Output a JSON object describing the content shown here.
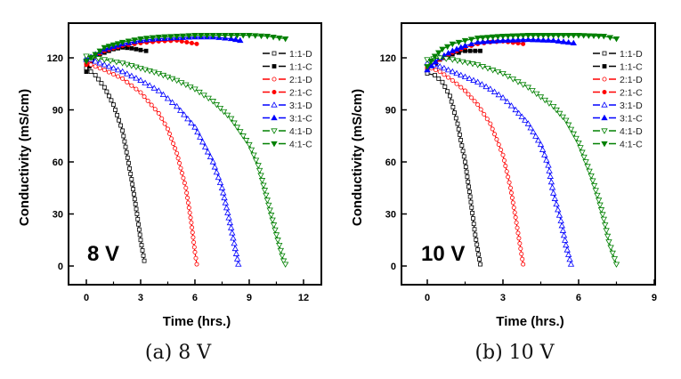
{
  "chart_data": [
    {
      "type": "line",
      "panel": "a",
      "caption": "(a) 8 V",
      "annotation": "8 V",
      "xlabel": "Time (hrs.)",
      "ylabel": "Conductivity (mS/cm)",
      "xlim": [
        -1,
        13
      ],
      "ylim": [
        -10.8,
        140
      ],
      "xticks": [
        0,
        3,
        6,
        9,
        12
      ],
      "xtick_labels": [
        "0",
        "3",
        "6",
        "9",
        "12"
      ],
      "yticks": [
        0,
        30,
        60,
        90,
        120
      ],
      "ytick_labels": [
        "0",
        "30",
        "60",
        "90",
        "120"
      ],
      "grid": false,
      "legend_position": "top-right",
      "series": [
        {
          "name": "1:1-D",
          "color": "#000000",
          "marker": "square-open",
          "x": [
            0,
            0.5,
            1,
            1.5,
            2,
            2.5,
            2.8,
            3.0,
            3.2
          ],
          "y": [
            114,
            110,
            103,
            93,
            78,
            50,
            30,
            15,
            3
          ]
        },
        {
          "name": "1:1-C",
          "color": "#000000",
          "marker": "square-filled",
          "x": [
            0,
            0.5,
            1,
            1.5,
            2,
            2.5,
            3,
            3.3
          ],
          "y": [
            112,
            121,
            123,
            125,
            126,
            125.5,
            124.5,
            124
          ]
        },
        {
          "name": "2:1-D",
          "color": "#ff0000",
          "marker": "circle-open",
          "x": [
            0,
            1,
            2,
            3,
            4,
            4.5,
            5,
            5.5,
            5.8,
            6.0,
            6.1
          ],
          "y": [
            117,
            113,
            108,
            100,
            88,
            79,
            65,
            45,
            25,
            8,
            1
          ]
        },
        {
          "name": "2:1-C",
          "color": "#ff0000",
          "marker": "circle-filled",
          "x": [
            0,
            0.5,
            1,
            2,
            3,
            4,
            5,
            6.1
          ],
          "y": [
            116,
            121,
            124,
            127,
            128.5,
            129.5,
            130,
            128
          ]
        },
        {
          "name": "3:1-D",
          "color": "#0000ff",
          "marker": "triangle-up-open",
          "x": [
            0,
            1,
            2,
            3,
            4,
            5,
            6,
            7,
            7.5,
            8,
            8.4
          ],
          "y": [
            120,
            116,
            112,
            107,
            101,
            92,
            80,
            60,
            45,
            22,
            1
          ]
        },
        {
          "name": "3:1-C",
          "color": "#0000ff",
          "marker": "triangle-up-filled",
          "x": [
            0,
            1,
            2,
            3,
            4,
            5,
            6,
            7,
            8,
            8.5
          ],
          "y": [
            119,
            125,
            128,
            130,
            131,
            131.5,
            132,
            132,
            131,
            130
          ]
        },
        {
          "name": "4:1-D",
          "color": "#008000",
          "marker": "triangle-down-open",
          "x": [
            0,
            1,
            2,
            3,
            4,
            5,
            6,
            7,
            8,
            9,
            9.5,
            10,
            10.5,
            10.9,
            11
          ],
          "y": [
            121,
            119,
            117,
            114,
            111,
            107,
            102,
            95,
            85,
            70,
            58,
            38,
            18,
            3,
            1
          ]
        },
        {
          "name": "4:1-C",
          "color": "#008000",
          "marker": "triangle-down-filled",
          "x": [
            0,
            1,
            2,
            3,
            4,
            5,
            6,
            7,
            8,
            9,
            10,
            11
          ],
          "y": [
            118,
            126,
            129,
            131,
            132,
            132.5,
            133,
            133,
            133,
            133,
            132.5,
            131
          ]
        }
      ]
    },
    {
      "type": "line",
      "panel": "b",
      "caption": "(b) 10 V",
      "annotation": "10 V",
      "xlabel": "Time (hrs.)",
      "ylabel": "Conductivity (mS/cm)",
      "xlim": [
        -1,
        9
      ],
      "ylim": [
        -10.8,
        140
      ],
      "xticks": [
        0,
        3,
        6,
        9
      ],
      "xtick_labels": [
        "0",
        "3",
        "6",
        "9"
      ],
      "yticks": [
        0,
        30,
        60,
        90,
        120
      ],
      "ytick_labels": [
        "0",
        "30",
        "60",
        "90",
        "120"
      ],
      "grid": false,
      "legend_position": "top-right",
      "series": [
        {
          "name": "1:1-D",
          "color": "#000000",
          "marker": "square-open",
          "x": [
            0,
            0.3,
            0.6,
            0.9,
            1.2,
            1.5,
            1.7,
            1.9,
            2.1
          ],
          "y": [
            111,
            110,
            106,
            98,
            82,
            60,
            40,
            18,
            1
          ]
        },
        {
          "name": "1:1-C",
          "color": "#000000",
          "marker": "square-filled",
          "x": [
            0,
            0.5,
            1,
            1.5,
            2.1
          ],
          "y": [
            113,
            119,
            122,
            124,
            124
          ]
        },
        {
          "name": "2:1-D",
          "color": "#ff0000",
          "marker": "circle-open",
          "x": [
            0,
            0.5,
            1,
            1.5,
            2,
            2.5,
            3,
            3.3,
            3.5,
            3.7,
            3.8
          ],
          "y": [
            115,
            112,
            107,
            101,
            93,
            82,
            64,
            45,
            28,
            10,
            1
          ]
        },
        {
          "name": "2:1-C",
          "color": "#ff0000",
          "marker": "circle-filled",
          "x": [
            0,
            0.5,
            1,
            1.5,
            2,
            2.5,
            3,
            3.8
          ],
          "y": [
            114,
            119,
            123,
            126,
            128,
            129,
            129.5,
            128
          ]
        },
        {
          "name": "3:1-D",
          "color": "#0000ff",
          "marker": "triangle-up-open",
          "x": [
            0,
            0.5,
            1,
            1.5,
            2,
            2.5,
            3,
            3.5,
            4,
            4.5,
            4.8,
            5,
            5.3,
            5.5,
            5.7
          ],
          "y": [
            117,
            115,
            112,
            109,
            106,
            102,
            97,
            90,
            82,
            70,
            58,
            42,
            26,
            12,
            1
          ]
        },
        {
          "name": "3:1-C",
          "color": "#0000ff",
          "marker": "triangle-up-filled",
          "x": [
            0,
            0.5,
            1,
            1.5,
            2,
            3,
            4,
            5,
            5.8
          ],
          "y": [
            113,
            120,
            124,
            127,
            129,
            130,
            130.5,
            130,
            128.5
          ]
        },
        {
          "name": "4:1-D",
          "color": "#008000",
          "marker": "triangle-down-open",
          "x": [
            0,
            0.5,
            1,
            2,
            3,
            4,
            5,
            5.5,
            6,
            6.5,
            6.8,
            7,
            7.2,
            7.5
          ],
          "y": [
            119,
            120,
            119,
            116,
            111,
            103,
            92,
            84,
            71,
            52,
            38,
            27,
            14,
            1
          ]
        },
        {
          "name": "4:1-C",
          "color": "#008000",
          "marker": "triangle-down-filled",
          "x": [
            0,
            0.3,
            0.6,
            1,
            1.5,
            2,
            3,
            4,
            5,
            6,
            7,
            7.5
          ],
          "y": [
            115,
            121,
            125,
            128,
            130,
            131.5,
            132.5,
            133,
            133,
            133,
            132.5,
            131
          ]
        }
      ]
    }
  ]
}
